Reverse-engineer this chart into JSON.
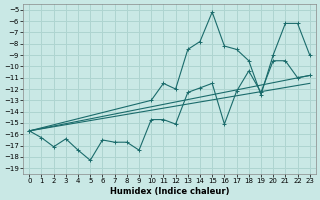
{
  "xlabel": "Humidex (Indice chaleur)",
  "xlim": [
    -0.5,
    23.5
  ],
  "ylim": [
    -19.5,
    -4.5
  ],
  "yticks": [
    -5,
    -6,
    -7,
    -8,
    -9,
    -10,
    -11,
    -12,
    -13,
    -14,
    -15,
    -16,
    -17,
    -18,
    -19
  ],
  "xticks": [
    0,
    1,
    2,
    3,
    4,
    5,
    6,
    7,
    8,
    9,
    10,
    11,
    12,
    13,
    14,
    15,
    16,
    17,
    18,
    19,
    20,
    21,
    22,
    23
  ],
  "bg_color": "#c9e8e5",
  "grid_color": "#aed4d0",
  "line_color": "#1a6b6b",
  "line1_x": [
    0,
    1,
    2,
    3,
    4,
    5,
    6,
    7,
    8,
    9,
    10,
    11,
    12,
    13,
    14,
    15,
    16,
    17,
    18,
    19,
    20,
    21,
    22,
    23
  ],
  "line1_y": [
    -15.7,
    -16.3,
    -17.1,
    -16.4,
    -17.4,
    -18.3,
    -16.5,
    -16.7,
    -16.7,
    -17.4,
    -14.7,
    -14.7,
    -15.1,
    -12.3,
    -11.9,
    -11.5,
    -15.1,
    -12.2,
    -10.4,
    -12.3,
    -9.5,
    -9.5,
    -11.0,
    -10.8
  ],
  "line2_x": [
    0,
    23
  ],
  "line2_y": [
    -15.7,
    -10.8
  ],
  "line3_x": [
    0,
    23
  ],
  "line3_y": [
    -15.7,
    -11.5
  ],
  "line4_x": [
    0,
    10,
    11,
    12,
    13,
    14,
    15,
    16,
    17,
    18,
    19,
    20,
    21,
    22,
    23
  ],
  "line4_y": [
    -15.7,
    -13.0,
    -11.5,
    -12.0,
    -8.5,
    -7.8,
    -5.2,
    -8.2,
    -8.5,
    -9.5,
    -12.5,
    -9.0,
    -6.2,
    -6.2,
    -9.0
  ]
}
